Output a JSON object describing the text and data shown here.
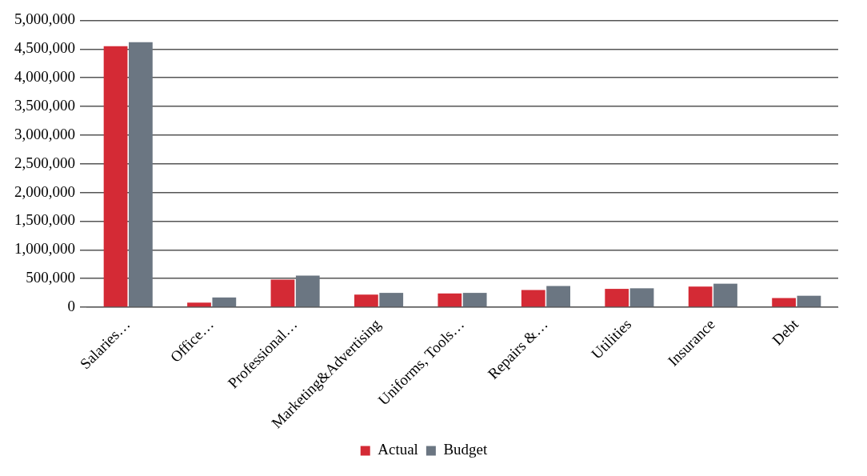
{
  "chart_data": {
    "type": "bar",
    "categories": [
      "Salaries…",
      "Office…",
      "Professional…",
      "Marketing&Advertising",
      "Uniforms, Tools…",
      "Repairs &…",
      "Utilities",
      "Insurance",
      "Debt"
    ],
    "series": [
      {
        "name": "Actual",
        "color": "#d42a35",
        "values": [
          4550000,
          80000,
          480000,
          220000,
          240000,
          300000,
          320000,
          360000,
          160000
        ]
      },
      {
        "name": "Budget",
        "color": "#6b7682",
        "values": [
          4620000,
          170000,
          550000,
          250000,
          250000,
          370000,
          330000,
          410000,
          200000
        ]
      }
    ],
    "ylim": [
      0,
      5000000
    ],
    "yticks": [
      0,
      {
        "value": 500000,
        "label": "500,000"
      },
      {
        "value": 1000000,
        "label": "1,000,000"
      },
      {
        "value": 1500000,
        "label": "1,500,000"
      },
      {
        "value": 2000000,
        "label": "2,000,000"
      },
      {
        "value": 2500000,
        "label": "2,500,000"
      },
      {
        "value": 3000000,
        "label": "3,000,000"
      },
      {
        "value": 3500000,
        "label": "3,500,000"
      },
      {
        "value": 4000000,
        "label": "4,000,000"
      },
      {
        "value": 4500000,
        "label": "4,500,000"
      },
      {
        "value": 5000000,
        "label": "5,000,000"
      }
    ],
    "grid": "y",
    "legend": "bottom"
  }
}
